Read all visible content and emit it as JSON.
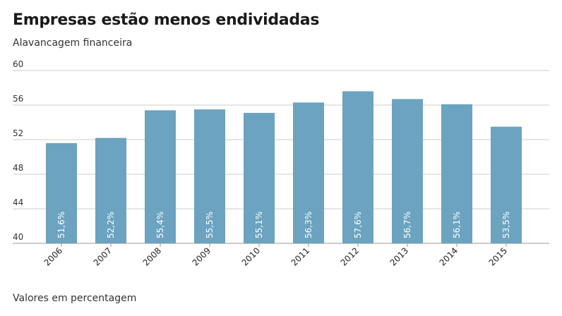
{
  "chart_data": {
    "type": "bar",
    "title": "Empresas estão menos endividadas",
    "subtitle": "Alavancagem financeira",
    "footnote": "Valores em percentagem",
    "categories": [
      "2006",
      "2007",
      "2008",
      "2009",
      "2010",
      "2011",
      "2012",
      "2013",
      "2014",
      "2015"
    ],
    "values": [
      51.6,
      52.2,
      55.4,
      55.5,
      55.1,
      56.3,
      57.6,
      56.7,
      56.1,
      53.5
    ],
    "value_labels": [
      "51,6%",
      "52,2%",
      "55,4%",
      "55,5%",
      "55,1%",
      "56,3%",
      "57,6%",
      "56,7%",
      "56,1%",
      "53,5%"
    ],
    "ylim": [
      40,
      60
    ],
    "yticks": [
      40,
      44,
      48,
      52,
      56,
      60
    ],
    "ytick_labels": [
      "40",
      "44",
      "48",
      "52",
      "56",
      "60"
    ],
    "grid": true,
    "bar_color": "#6ba3c0",
    "grid_color": "#cccccc"
  }
}
